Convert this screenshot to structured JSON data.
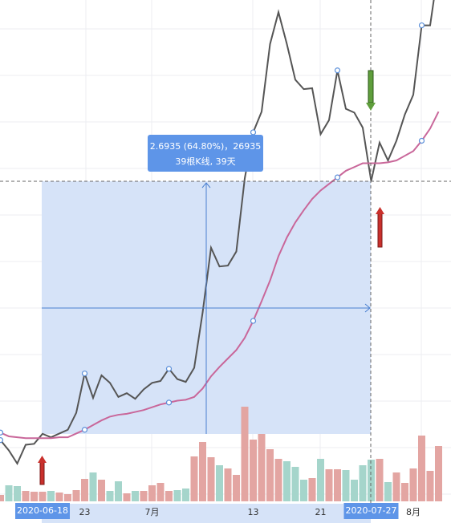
{
  "chart_data": {
    "type": "line",
    "categories": [
      null,
      null,
      null,
      null,
      null,
      "2020-06-18",
      null,
      null,
      null,
      null,
      "23",
      null,
      null,
      null,
      null,
      null,
      null,
      null,
      "7月",
      null,
      null,
      null,
      null,
      null,
      null,
      null,
      null,
      null,
      null,
      null,
      "13",
      null,
      null,
      null,
      null,
      null,
      null,
      null,
      "21",
      null,
      null,
      null,
      null,
      null,
      "2020-07-27",
      null,
      null,
      null,
      null,
      "8月",
      null,
      null,
      null
    ],
    "series": [
      {
        "color": "#555555",
        "values": [
          4.09,
          3.98,
          3.84,
          4.04,
          4.05,
          4.157,
          4.12,
          4.16,
          4.2,
          4.38,
          4.8,
          4.54,
          4.78,
          4.7,
          4.55,
          4.59,
          4.53,
          4.63,
          4.7,
          4.72,
          4.85,
          4.74,
          4.71,
          4.86,
          5.45,
          6.14,
          5.94,
          5.95,
          6.1,
          6.88,
          7.37,
          7.59,
          8.31,
          8.65,
          8.31,
          7.93,
          7.83,
          7.84,
          7.35,
          7.5,
          8.03,
          7.62,
          7.58,
          7.42,
          6.85,
          7.26,
          7.07,
          7.28,
          7.56,
          7.77,
          8.51,
          8.51,
          9.13
        ]
      },
      {
        "color": "#c9679a",
        "values": [
          4.17,
          4.13,
          4.12,
          4.11,
          4.11,
          4.11,
          4.11,
          4.12,
          4.12,
          4.16,
          4.2,
          4.25,
          4.3,
          4.34,
          4.36,
          4.37,
          4.39,
          4.41,
          4.44,
          4.47,
          4.49,
          4.51,
          4.52,
          4.55,
          4.64,
          4.77,
          4.87,
          4.96,
          5.05,
          5.18,
          5.36,
          5.57,
          5.79,
          6.05,
          6.25,
          6.41,
          6.54,
          6.66,
          6.75,
          6.82,
          6.89,
          6.96,
          7.0,
          7.04,
          7.04,
          7.04,
          7.05,
          7.07,
          7.12,
          7.17,
          7.28,
          7.41,
          7.59
        ]
      }
    ],
    "ylim": [
      3.48,
      8.78
    ],
    "volume": {
      "values": [
        8,
        20,
        19,
        13,
        12,
        12,
        13,
        11,
        9,
        14,
        28,
        36,
        27,
        13,
        25,
        10,
        13,
        13,
        20,
        23,
        13,
        14,
        16,
        56,
        74,
        55,
        45,
        41,
        33,
        118,
        77,
        84,
        65,
        53,
        50,
        43,
        27,
        29,
        53,
        40,
        40,
        39,
        27,
        45,
        52,
        53,
        24,
        36,
        23,
        41,
        82,
        38,
        69
      ],
      "ylim": [
        0,
        120
      ],
      "up_color": "#e3a5a2",
      "down_color": "#a5d5cb"
    },
    "annotations": [
      "2.6935 (64.80%)，26935",
      "39根K线, 39天"
    ]
  }
}
